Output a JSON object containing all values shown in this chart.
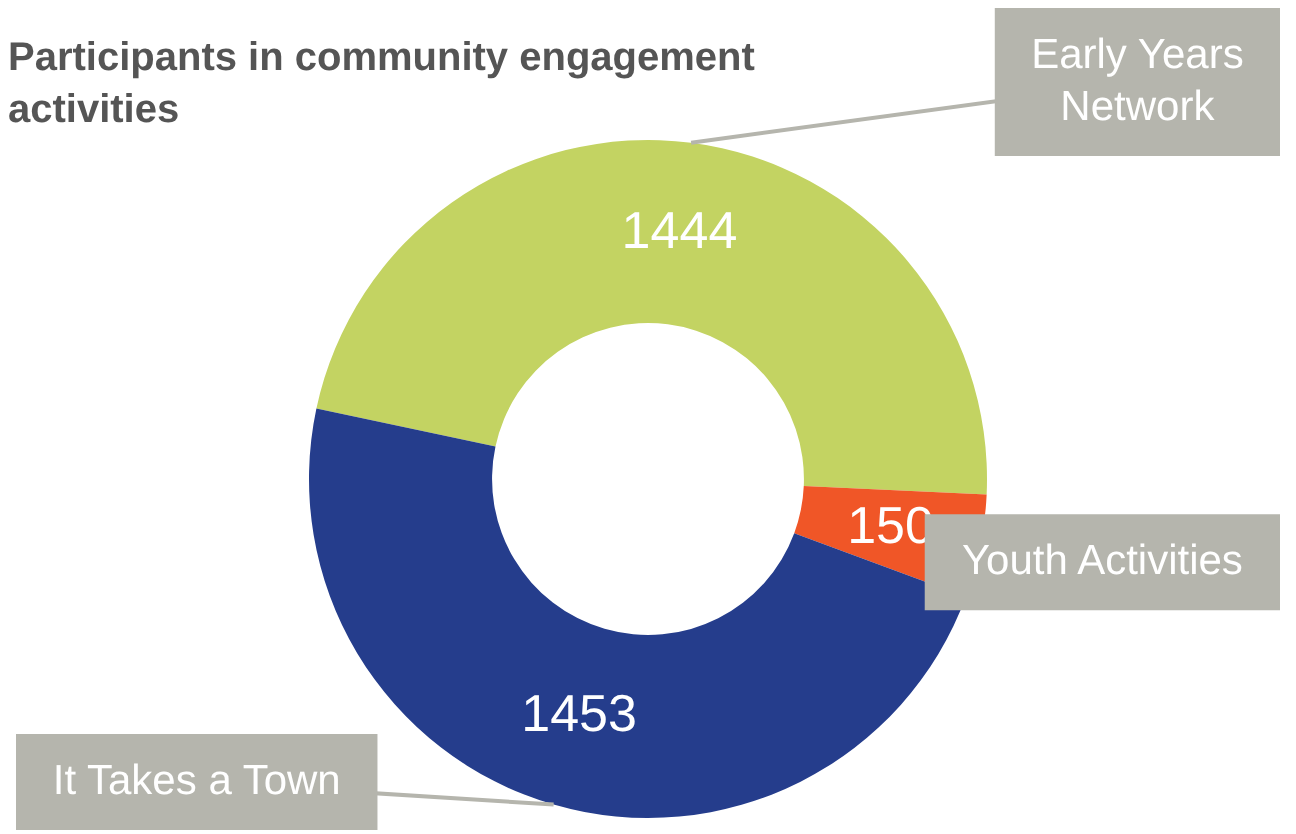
{
  "chart_data": {
    "type": "donut",
    "title": "Participants in community engagement activities",
    "categories": [
      "Early Years Network",
      "Youth Activities",
      "It Takes a Town"
    ],
    "values": [
      1444,
      150,
      1453
    ],
    "colors": [
      "#c3d362",
      "#f05627",
      "#253d8c"
    ],
    "data_labels": true,
    "legend": false
  }
}
